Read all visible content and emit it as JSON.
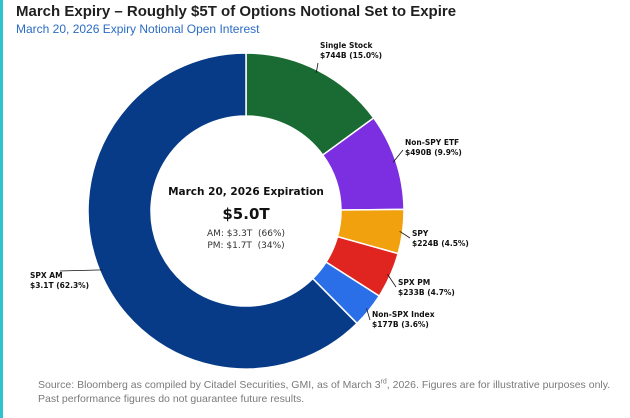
{
  "title": "March Expiry – Roughly $5T of Options Notional Set to Expire",
  "subtitle": "March 20, 2026 Expiry Notional Open Interest",
  "chart_data": {
    "type": "pie",
    "center": {
      "heading": "March 20, 2026 Expiration",
      "total": "$5.0T",
      "am": "AM: $3.3T  (66%)",
      "pm": "PM: $1.7T  (34%)"
    },
    "slices": [
      {
        "name": "Single Stock",
        "value": 744,
        "unit": "B",
        "label": "$744B (15.0%)",
        "color": "#1a6b33"
      },
      {
        "name": "Non-SPY ETF",
        "value": 490,
        "unit": "B",
        "label": "$490B (9.9%)",
        "color": "#7b2fe0"
      },
      {
        "name": "SPY",
        "value": 224,
        "unit": "B",
        "label": "$224B (4.5%)",
        "color": "#f2a10e"
      },
      {
        "name": "SPX PM",
        "value": 233,
        "unit": "B",
        "label": "$233B (4.7%)",
        "color": "#e0241f"
      },
      {
        "name": "Non-SPX Index",
        "value": 177,
        "unit": "B",
        "label": "$177B (3.6%)",
        "color": "#2b6fe8"
      },
      {
        "name": "SPX AM",
        "value": 3100,
        "unit": "B",
        "label": "$3.1T (62.3%)",
        "color": "#073b87"
      }
    ]
  },
  "source_pre": "Source: Bloomberg as compiled by Citadel Securities, GMI, as of March 3",
  "source_sup": "rd",
  "source_post": ", 2026. Figures are for illustrative purposes only. Past performance figures do not guarantee future results."
}
